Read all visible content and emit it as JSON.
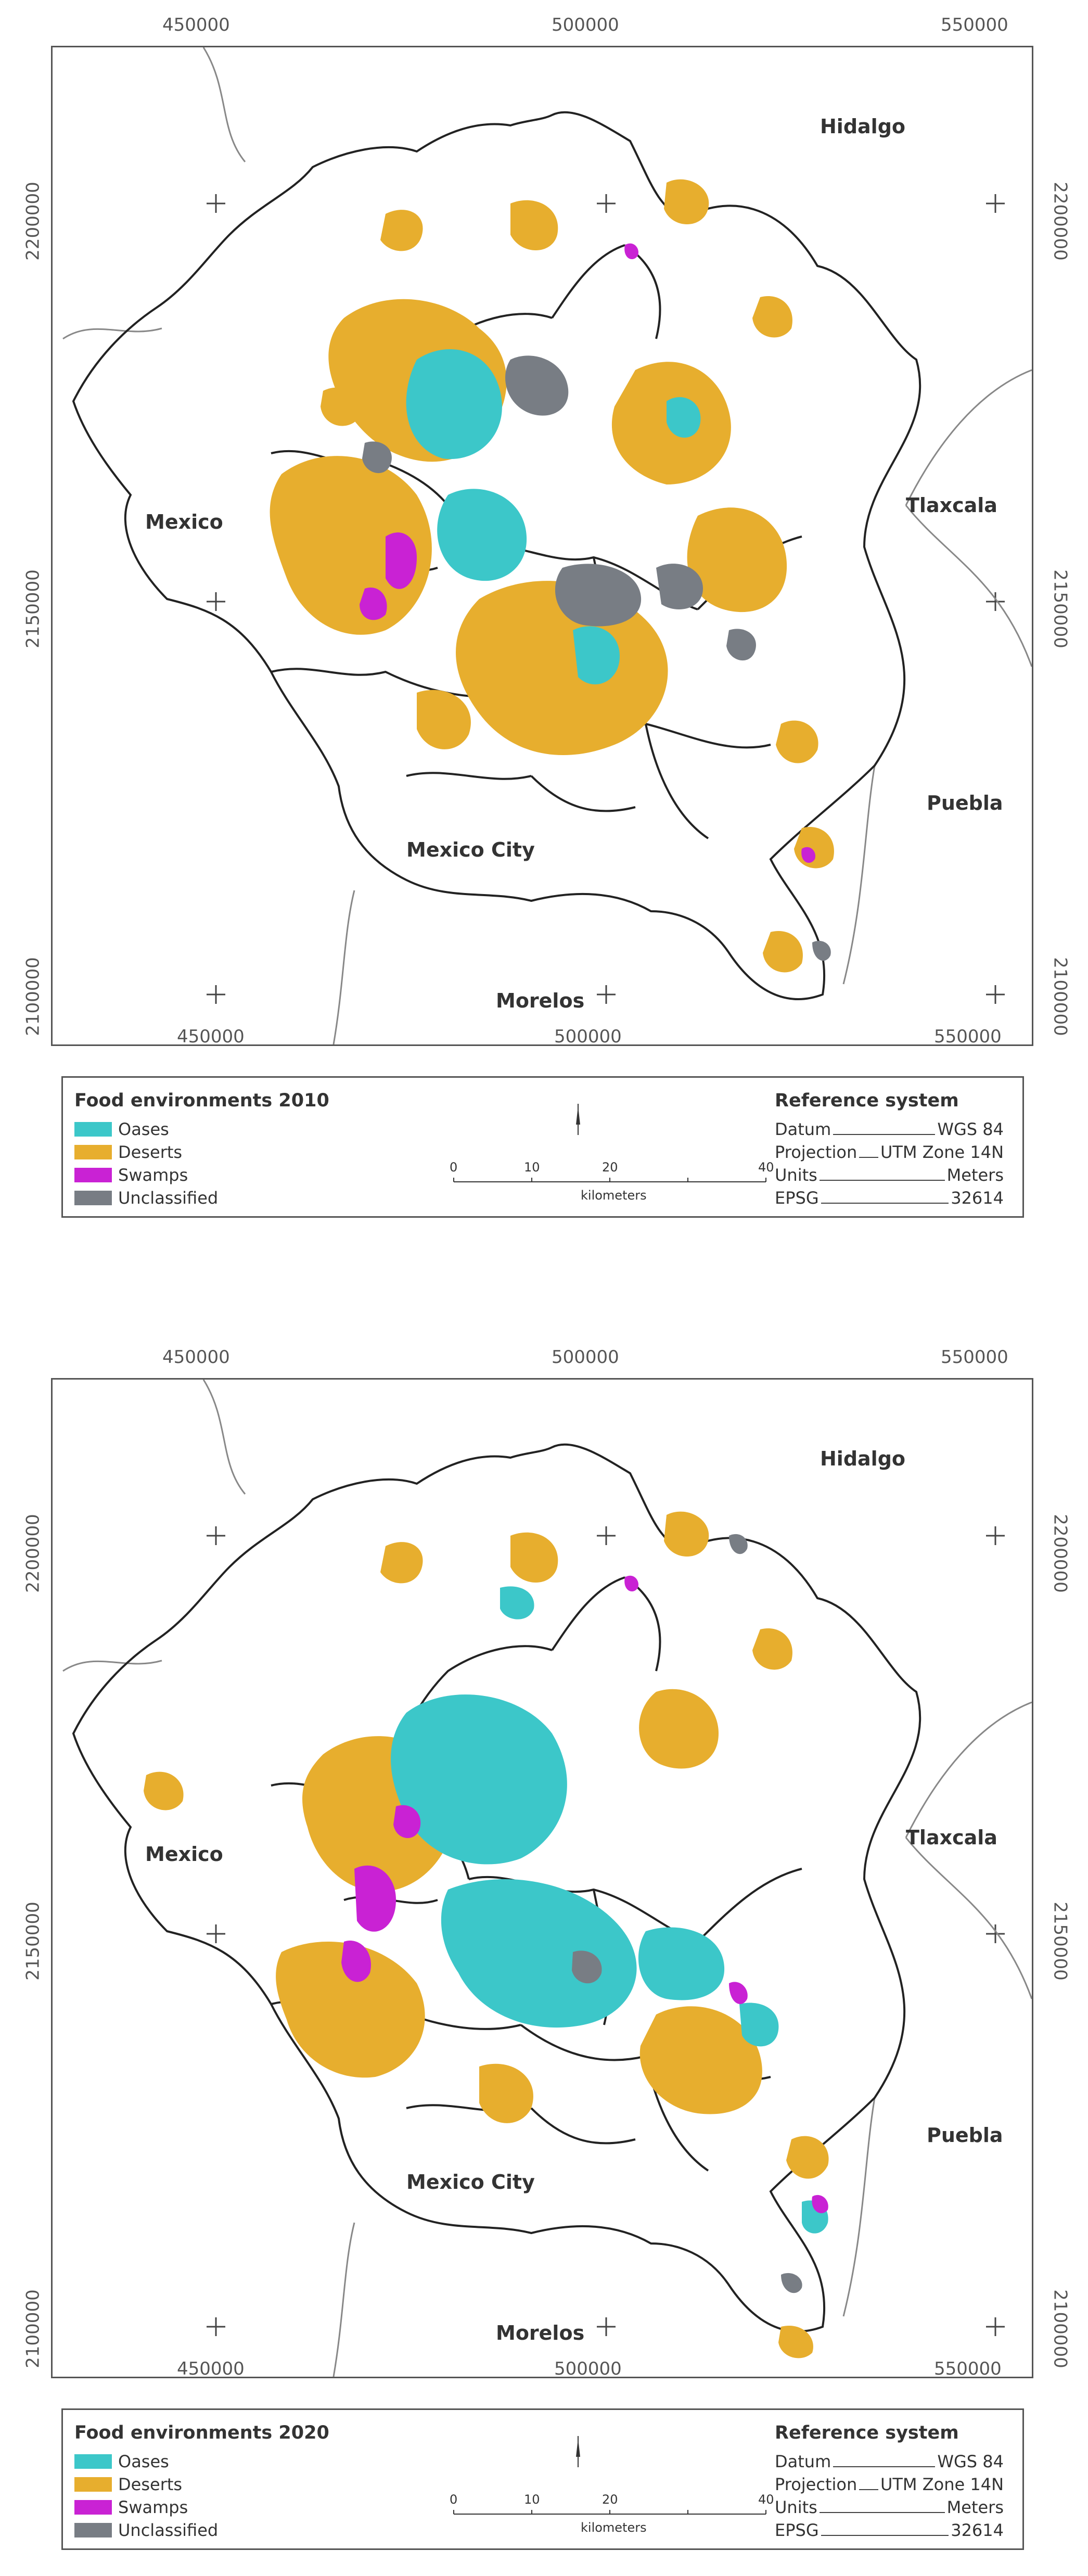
{
  "maps": [
    {
      "id": "2010",
      "legend_title": "Food environments 2010",
      "top_ticks": [
        "450000",
        "500000",
        "550000"
      ],
      "bottom_ticks": [
        "450000",
        "500000",
        "550000"
      ],
      "left_ticks": [
        "2200000",
        "2150000",
        "2100000"
      ],
      "right_ticks": [
        "2200000",
        "2150000",
        "2100000"
      ]
    },
    {
      "id": "2020",
      "legend_title": "Food environments 2020",
      "top_ticks": [
        "450000",
        "500000",
        "550000"
      ],
      "bottom_ticks": [
        "450000",
        "500000",
        "550000"
      ],
      "left_ticks": [
        "2200000",
        "2150000",
        "2100000"
      ],
      "right_ticks": [
        "2200000",
        "2150000",
        "2100000"
      ]
    }
  ],
  "places": {
    "hidalgo": "Hidalgo",
    "mexico": "Mexico",
    "tlaxcala": "Tlaxcala",
    "puebla": "Puebla",
    "mexico_city": "Mexico City",
    "morelos": "Morelos"
  },
  "legend_items": [
    {
      "label": "Oases",
      "color": "#3cc7c9"
    },
    {
      "label": "Deserts",
      "color": "#e7ae2e"
    },
    {
      "label": "Swamps",
      "color": "#c922d4"
    },
    {
      "label": "Unclassified",
      "color": "#787d84"
    }
  ],
  "scale": {
    "ticks": [
      "0",
      "10",
      "20",
      "40"
    ],
    "unit": "kilometers"
  },
  "reference": {
    "title": "Reference system",
    "rows": [
      {
        "key": "Datum",
        "value": "WGS 84"
      },
      {
        "key": "Projection",
        "value": "UTM Zone 14N"
      },
      {
        "key": "Units",
        "value": "Meters"
      },
      {
        "key": "EPSG",
        "value": "32614"
      }
    ]
  },
  "colors": {
    "oases": "#3cc7c9",
    "deserts": "#e7ae2e",
    "swamps": "#c922d4",
    "unclassified": "#787d84",
    "boundary": "#222222",
    "state_border": "#888888"
  }
}
